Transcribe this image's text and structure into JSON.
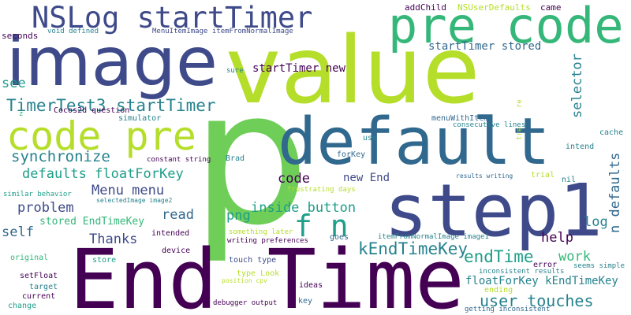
{
  "background": "#ffffff",
  "palette": {
    "dark_purple": "#440154",
    "indigo": "#3e4a89",
    "blue": "#31688e",
    "teal": "#26828e",
    "green_teal": "#1f9e89",
    "green": "#35b779",
    "light_green": "#6ece58",
    "yellow_green": "#b5de2b"
  },
  "words": [
    {
      "text": "p",
      "color": "#6ece58"
    },
    {
      "text": "value",
      "color": "#b5de2b"
    },
    {
      "text": "End Time",
      "color": "#440154"
    },
    {
      "text": "step1",
      "color": "#3e4a89"
    },
    {
      "text": "image",
      "color": "#3e4a89"
    },
    {
      "text": "default",
      "color": "#31688e"
    },
    {
      "text": "pre code",
      "color": "#35b779"
    },
    {
      "text": "code pre",
      "color": "#b5de2b"
    },
    {
      "text": "NSLog startTimer",
      "color": "#3e4a89"
    },
    {
      "text": "f n",
      "color": "#1f9e89"
    },
    {
      "text": "TimerTest3 startTimer",
      "color": "#26828e"
    },
    {
      "text": "kEndTimeKey",
      "color": "#26828e"
    },
    {
      "text": "endTime",
      "color": "#1f9e89"
    },
    {
      "text": "user touches",
      "color": "#26828e"
    },
    {
      "text": "synchronize",
      "color": "#26828e"
    },
    {
      "text": "defaults floatForKey",
      "color": "#1f9e89"
    },
    {
      "text": "Menu menu",
      "color": "#3e4a89"
    },
    {
      "text": "inside button",
      "color": "#1f9e89"
    },
    {
      "text": "problem",
      "color": "#3e4a89"
    },
    {
      "text": "self",
      "color": "#31688e"
    },
    {
      "text": "Thanks",
      "color": "#3e4a89"
    },
    {
      "text": "read",
      "color": "#31688e"
    },
    {
      "text": "png",
      "color": "#1f9e89"
    },
    {
      "text": "log",
      "color": "#26828e"
    },
    {
      "text": "help",
      "color": "#440154"
    },
    {
      "text": "work",
      "color": "#35b779"
    },
    {
      "text": "see",
      "color": "#1f9e89"
    },
    {
      "text": "code",
      "color": "#440154"
    },
    {
      "text": "new End",
      "color": "#3e4a89"
    },
    {
      "text": "floatForKey kEndTimeKey",
      "color": "#26828e"
    },
    {
      "text": "startTimer new",
      "color": "#440154"
    },
    {
      "text": "startTimer stored",
      "color": "#31688e"
    },
    {
      "text": "stored EndTimeKey",
      "color": "#35b779"
    },
    {
      "text": "selector",
      "color": "#26828e"
    },
    {
      "text": "n defaults",
      "color": "#31688e"
    },
    {
      "text": "NSUserDefaults",
      "color": "#b5de2b"
    },
    {
      "text": "addChild",
      "color": "#440154"
    },
    {
      "text": "came",
      "color": "#440154"
    },
    {
      "text": "seconds",
      "color": "#440154"
    },
    {
      "text": "void defined",
      "color": "#26828e"
    },
    {
      "text": "MenuItemImage itemFromNormalImage",
      "color": "#3e4a89"
    },
    {
      "text": "sure",
      "color": "#26828e"
    },
    {
      "text": "Cocos2d question",
      "color": "#440154"
    },
    {
      "text": "simulator",
      "color": "#26828e"
    },
    {
      "text": "menuWithItems",
      "color": "#31688e"
    },
    {
      "text": "consecutive lines",
      "color": "#26828e"
    },
    {
      "text": "cache",
      "color": "#26828e"
    },
    {
      "text": "intend",
      "color": "#26828e"
    },
    {
      "text": "constant string",
      "color": "#440154"
    },
    {
      "text": "Brad",
      "color": "#26828e"
    },
    {
      "text": "use",
      "color": "#26828e"
    },
    {
      "text": "forKey",
      "color": "#31688e"
    },
    {
      "text": "results writing",
      "color": "#31688e"
    },
    {
      "text": "trial",
      "color": "#b5de2b"
    },
    {
      "text": "nil",
      "color": "#26828e"
    },
    {
      "text": "frustrating days",
      "color": "#b5de2b"
    },
    {
      "text": "similar behavior",
      "color": "#1f9e89"
    },
    {
      "text": "selectedImage image2",
      "color": "#26828e"
    },
    {
      "text": "intended",
      "color": "#440154"
    },
    {
      "text": "something later",
      "color": "#b5de2b"
    },
    {
      "text": "writing preferences",
      "color": "#440154"
    },
    {
      "text": "goes",
      "color": "#31688e"
    },
    {
      "text": "itemFromNormalImage image1",
      "color": "#26828e"
    },
    {
      "text": "device",
      "color": "#440154"
    },
    {
      "text": "original",
      "color": "#35b779"
    },
    {
      "text": "store",
      "color": "#1f9e89"
    },
    {
      "text": "touch type",
      "color": "#3e4a89"
    },
    {
      "text": "error",
      "color": "#440154"
    },
    {
      "text": "inconsistent results",
      "color": "#26828e"
    },
    {
      "text": "seems simple",
      "color": "#26828e"
    },
    {
      "text": "setFloat",
      "color": "#440154"
    },
    {
      "text": "target",
      "color": "#26828e"
    },
    {
      "text": "type Look",
      "color": "#b5de2b"
    },
    {
      "text": "position cpv",
      "color": "#b5de2b"
    },
    {
      "text": "ideas",
      "color": "#440154"
    },
    {
      "text": "ending",
      "color": "#b5de2b"
    },
    {
      "text": "current",
      "color": "#440154"
    },
    {
      "text": "change",
      "color": "#1f9e89"
    },
    {
      "text": "debugger output",
      "color": "#440154"
    },
    {
      "text": "key",
      "color": "#31688e"
    },
    {
      "text": "getting inconsistent",
      "color": "#31688e"
    },
    {
      "text": "z",
      "color": "#35b779"
    },
    {
      "text": "re",
      "color": "#b5de2b"
    },
    {
      "text": "tre",
      "color": "#b5de2b"
    }
  ]
}
